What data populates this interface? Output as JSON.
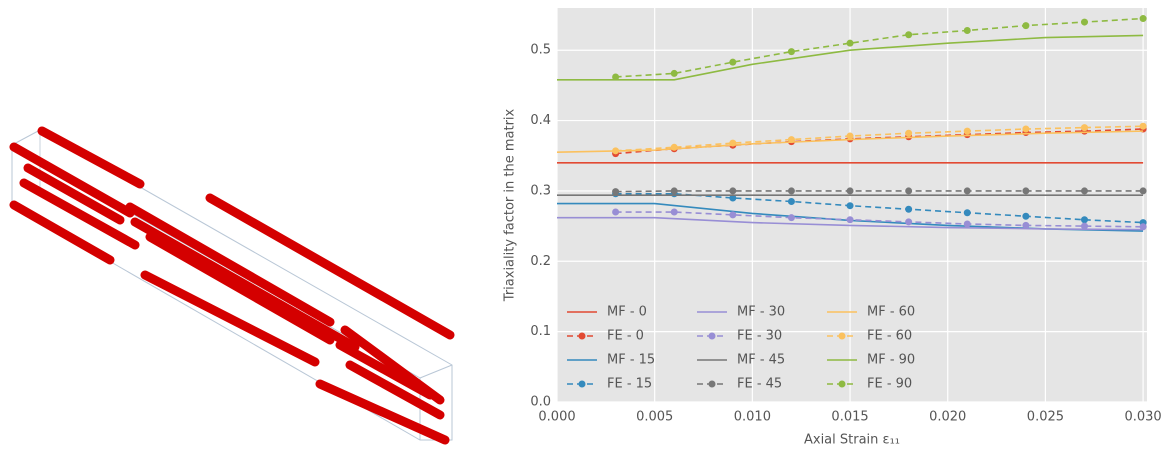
{
  "chart_data": {
    "type": "line",
    "xlabel": "Axial Strain ε₁₁",
    "ylabel": "Triaxiality factor in the matrix",
    "xlim": [
      0,
      0.0302
    ],
    "ylim": [
      0,
      0.56
    ],
    "xticks": [
      {
        "value": 0,
        "label": "0.000"
      },
      0.005,
      {
        "value": 0.01,
        "label": "0.010"
      },
      0.015,
      {
        "value": 0.02,
        "label": "0.020"
      },
      0.025,
      {
        "value": 0.03,
        "label": "0.030"
      }
    ],
    "yticks": [
      {
        "value": 0,
        "label": "0.0"
      },
      0.1,
      0.2,
      0.3,
      0.4,
      0.5
    ],
    "grid": true,
    "legend": "lower left",
    "background": "#e5e5e5",
    "series": [
      {
        "name": "MF - 0",
        "color": "#e24a33",
        "linestyle": "solid",
        "marker": false,
        "x": [
          0,
          0.005,
          0.01,
          0.015,
          0.02,
          0.025,
          0.03
        ],
        "values": [
          0.34,
          0.34,
          0.34,
          0.34,
          0.34,
          0.34,
          0.34
        ]
      },
      {
        "name": "FE - 0",
        "color": "#e24a33",
        "linestyle": "dashed",
        "marker": true,
        "x": [
          0.003,
          0.006,
          0.009,
          0.012,
          0.015,
          0.018,
          0.021,
          0.024,
          0.027,
          0.03
        ],
        "values": [
          0.353,
          0.36,
          0.365,
          0.37,
          0.374,
          0.377,
          0.38,
          0.383,
          0.385,
          0.388
        ]
      },
      {
        "name": "MF - 15",
        "color": "#348abd",
        "linestyle": "solid",
        "marker": false,
        "x": [
          0,
          0.005,
          0.01,
          0.015,
          0.02,
          0.025,
          0.03
        ],
        "values": [
          0.282,
          0.282,
          0.268,
          0.258,
          0.251,
          0.246,
          0.243
        ]
      },
      {
        "name": "FE - 15",
        "color": "#348abd",
        "linestyle": "dashed",
        "marker": true,
        "x": [
          0.003,
          0.006,
          0.009,
          0.012,
          0.015,
          0.018,
          0.021,
          0.024,
          0.027,
          0.03
        ],
        "values": [
          0.296,
          0.296,
          0.29,
          0.285,
          0.279,
          0.274,
          0.269,
          0.264,
          0.259,
          0.255
        ]
      },
      {
        "name": "MF - 30",
        "color": "#988ed5",
        "linestyle": "solid",
        "marker": false,
        "x": [
          0,
          0.005,
          0.01,
          0.015,
          0.02,
          0.025,
          0.03
        ],
        "values": [
          0.262,
          0.262,
          0.255,
          0.251,
          0.248,
          0.246,
          0.245
        ]
      },
      {
        "name": "FE - 30",
        "color": "#988ed5",
        "linestyle": "dashed",
        "marker": true,
        "x": [
          0.003,
          0.006,
          0.009,
          0.012,
          0.015,
          0.018,
          0.021,
          0.024,
          0.027,
          0.03
        ],
        "values": [
          0.27,
          0.27,
          0.266,
          0.262,
          0.259,
          0.256,
          0.253,
          0.251,
          0.25,
          0.249
        ]
      },
      {
        "name": "MF - 45",
        "color": "#777777",
        "linestyle": "solid",
        "marker": false,
        "x": [
          0,
          0.005,
          0.01,
          0.015,
          0.02,
          0.025,
          0.03
        ],
        "values": [
          0.294,
          0.294,
          0.294,
          0.294,
          0.294,
          0.294,
          0.294
        ]
      },
      {
        "name": "FE - 45",
        "color": "#777777",
        "linestyle": "dashed",
        "marker": true,
        "x": [
          0.003,
          0.006,
          0.009,
          0.012,
          0.015,
          0.018,
          0.021,
          0.024,
          0.027,
          0.03
        ],
        "values": [
          0.299,
          0.3,
          0.3,
          0.3,
          0.3,
          0.3,
          0.3,
          0.3,
          0.3,
          0.3
        ]
      },
      {
        "name": "MF - 60",
        "color": "#fbc15e",
        "linestyle": "solid",
        "marker": false,
        "x": [
          0,
          0.005,
          0.01,
          0.015,
          0.02,
          0.025,
          0.03
        ],
        "values": [
          0.355,
          0.358,
          0.367,
          0.373,
          0.378,
          0.382,
          0.385
        ]
      },
      {
        "name": "FE - 60",
        "color": "#fbc15e",
        "linestyle": "dashed",
        "marker": true,
        "x": [
          0.003,
          0.006,
          0.009,
          0.012,
          0.015,
          0.018,
          0.021,
          0.024,
          0.027,
          0.03
        ],
        "values": [
          0.357,
          0.362,
          0.368,
          0.373,
          0.378,
          0.382,
          0.385,
          0.388,
          0.39,
          0.392
        ]
      },
      {
        "name": "MF - 90",
        "color": "#8eba42",
        "linestyle": "solid",
        "marker": false,
        "x": [
          0,
          0.006,
          0.01,
          0.015,
          0.02,
          0.025,
          0.03
        ],
        "values": [
          0.458,
          0.458,
          0.48,
          0.5,
          0.51,
          0.518,
          0.521
        ]
      },
      {
        "name": "FE - 90",
        "color": "#8eba42",
        "linestyle": "dashed",
        "marker": true,
        "x": [
          0.003,
          0.006,
          0.009,
          0.012,
          0.015,
          0.018,
          0.021,
          0.024,
          0.027,
          0.03
        ],
        "values": [
          0.462,
          0.467,
          0.483,
          0.498,
          0.51,
          0.522,
          0.528,
          0.535,
          0.54,
          0.545
        ]
      }
    ]
  }
}
